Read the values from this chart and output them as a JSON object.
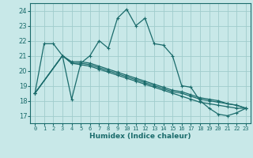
{
  "xlabel": "Humidex (Indice chaleur)",
  "xlim": [
    -0.5,
    23.5
  ],
  "ylim": [
    16.5,
    24.5
  ],
  "yticks": [
    17,
    18,
    19,
    20,
    21,
    22,
    23,
    24
  ],
  "xtick_labels": [
    "0",
    "1",
    "2",
    "3",
    "4",
    "5",
    "6",
    "7",
    "8",
    "9",
    "10",
    "11",
    "12",
    "13",
    "14",
    "15",
    "16",
    "17",
    "18",
    "19",
    "20",
    "21",
    "22",
    "23"
  ],
  "xtick_vals": [
    0,
    1,
    2,
    3,
    4,
    5,
    6,
    7,
    8,
    9,
    10,
    11,
    12,
    13,
    14,
    15,
    16,
    17,
    18,
    19,
    20,
    21,
    22,
    23
  ],
  "background_color": "#c8e8e8",
  "grid_color": "#a0cccc",
  "line_color": "#1a6b6b",
  "line1_x": [
    0,
    1,
    2,
    3,
    4,
    5,
    6,
    7,
    8,
    9,
    10,
    11,
    12,
    13,
    14,
    15,
    16,
    17,
    18,
    19,
    20,
    21,
    22,
    23
  ],
  "line1_y": [
    18.5,
    21.8,
    21.8,
    21.0,
    18.1,
    20.5,
    21.0,
    22.0,
    21.5,
    23.5,
    24.1,
    23.0,
    23.5,
    21.8,
    21.7,
    21.0,
    19.0,
    18.9,
    18.0,
    17.5,
    17.1,
    17.0,
    17.2,
    17.5
  ],
  "line2_x": [
    0,
    3,
    4,
    5,
    6,
    7,
    8,
    9,
    10,
    11,
    12,
    13,
    14,
    15,
    16,
    17,
    18,
    19,
    20,
    21,
    22,
    23
  ],
  "line2_y": [
    18.5,
    21.0,
    20.5,
    20.4,
    20.3,
    20.1,
    19.9,
    19.7,
    19.5,
    19.3,
    19.1,
    18.9,
    18.7,
    18.5,
    18.3,
    18.1,
    17.9,
    17.8,
    17.7,
    17.6,
    17.5,
    17.5
  ],
  "line3_x": [
    0,
    3,
    4,
    5,
    6,
    7,
    8,
    9,
    10,
    11,
    12,
    13,
    14,
    15,
    16,
    17,
    18,
    19,
    20,
    21,
    22,
    23
  ],
  "line3_y": [
    18.5,
    21.0,
    20.5,
    20.5,
    20.4,
    20.2,
    20.0,
    19.8,
    19.6,
    19.4,
    19.2,
    19.0,
    18.8,
    18.6,
    18.5,
    18.3,
    18.1,
    18.0,
    17.9,
    17.8,
    17.7,
    17.5
  ],
  "line4_x": [
    0,
    3,
    4,
    5,
    6,
    7,
    8,
    9,
    10,
    11,
    12,
    13,
    14,
    15,
    16,
    17,
    18,
    19,
    20,
    21,
    22,
    23
  ],
  "line4_y": [
    18.5,
    21.0,
    20.6,
    20.6,
    20.5,
    20.3,
    20.1,
    19.9,
    19.7,
    19.5,
    19.3,
    19.1,
    18.9,
    18.7,
    18.6,
    18.4,
    18.2,
    18.1,
    18.0,
    17.8,
    17.7,
    17.5
  ]
}
